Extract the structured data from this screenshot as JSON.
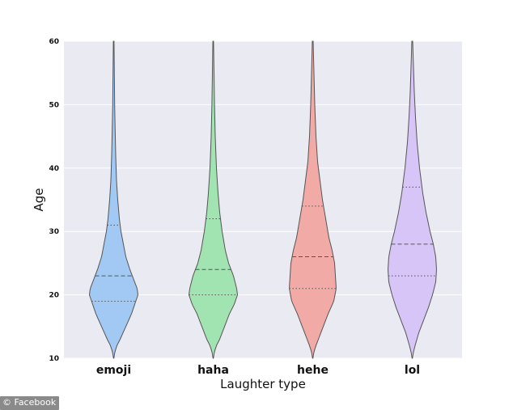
{
  "watermark": {
    "text": "© Facebook"
  },
  "chart_data": {
    "type": "violin",
    "title": "",
    "xlabel": "Laughter type",
    "ylabel": "Age",
    "ylim": [
      10,
      60
    ],
    "yticks": [
      10,
      20,
      30,
      40,
      50,
      60
    ],
    "grid": true,
    "background": "#eaeaf2",
    "categories": [
      "emoji",
      "haha",
      "hehe",
      "lol"
    ],
    "colors": [
      "#a1c9f4",
      "#a1e3b1",
      "#f2aaa7",
      "#d8c5f7"
    ],
    "violins": [
      {
        "name": "emoji",
        "quartiles": [
          19,
          23,
          31
        ],
        "profile": [
          [
            10,
            0.2
          ],
          [
            11,
            1.5
          ],
          [
            12,
            4
          ],
          [
            13,
            8
          ],
          [
            15,
            15
          ],
          [
            17,
            22
          ],
          [
            18.5,
            26
          ],
          [
            20,
            30
          ],
          [
            21,
            29
          ],
          [
            22,
            26
          ],
          [
            24,
            20
          ],
          [
            26,
            15
          ],
          [
            28,
            12
          ],
          [
            30,
            9
          ],
          [
            32,
            7
          ],
          [
            35,
            5
          ],
          [
            38,
            3.5
          ],
          [
            42,
            2.5
          ],
          [
            46,
            1.8
          ],
          [
            50,
            1.2
          ],
          [
            55,
            0.8
          ],
          [
            60,
            0.4
          ]
        ]
      },
      {
        "name": "haha",
        "quartiles": [
          20,
          24,
          32
        ],
        "profile": [
          [
            10,
            0.2
          ],
          [
            11,
            1.5
          ],
          [
            12,
            4
          ],
          [
            13,
            8
          ],
          [
            15,
            14
          ],
          [
            17,
            20
          ],
          [
            18.5,
            26
          ],
          [
            20,
            30
          ],
          [
            21,
            29
          ],
          [
            23,
            25
          ],
          [
            25,
            19
          ],
          [
            27,
            15
          ],
          [
            30,
            11
          ],
          [
            33,
            8
          ],
          [
            36,
            6
          ],
          [
            40,
            4
          ],
          [
            45,
            2.5
          ],
          [
            50,
            1.6
          ],
          [
            55,
            1
          ],
          [
            60,
            0.4
          ]
        ]
      },
      {
        "name": "hehe",
        "quartiles": [
          21,
          26,
          34
        ],
        "profile": [
          [
            10,
            0.2
          ],
          [
            11,
            1.5
          ],
          [
            12,
            4
          ],
          [
            13,
            7
          ],
          [
            15,
            13
          ],
          [
            17,
            19
          ],
          [
            19,
            26
          ],
          [
            21,
            29
          ],
          [
            23,
            28
          ],
          [
            25,
            27
          ],
          [
            27,
            24
          ],
          [
            29,
            20
          ],
          [
            32,
            16
          ],
          [
            35,
            12
          ],
          [
            38,
            9
          ],
          [
            41,
            6
          ],
          [
            45,
            4
          ],
          [
            50,
            2.5
          ],
          [
            55,
            1.5
          ],
          [
            60,
            0.5
          ]
        ]
      },
      {
        "name": "lol",
        "quartiles": [
          23,
          28,
          37
        ],
        "profile": [
          [
            10,
            0.2
          ],
          [
            11,
            1.5
          ],
          [
            12,
            3.5
          ],
          [
            14,
            8
          ],
          [
            16,
            14
          ],
          [
            18,
            20
          ],
          [
            20,
            25
          ],
          [
            22,
            29
          ],
          [
            24,
            30
          ],
          [
            26,
            29
          ],
          [
            28,
            26
          ],
          [
            30,
            22
          ],
          [
            33,
            17
          ],
          [
            36,
            13
          ],
          [
            40,
            9
          ],
          [
            44,
            6
          ],
          [
            48,
            4
          ],
          [
            52,
            2.5
          ],
          [
            56,
            1.5
          ],
          [
            60,
            0.5
          ]
        ]
      }
    ]
  }
}
